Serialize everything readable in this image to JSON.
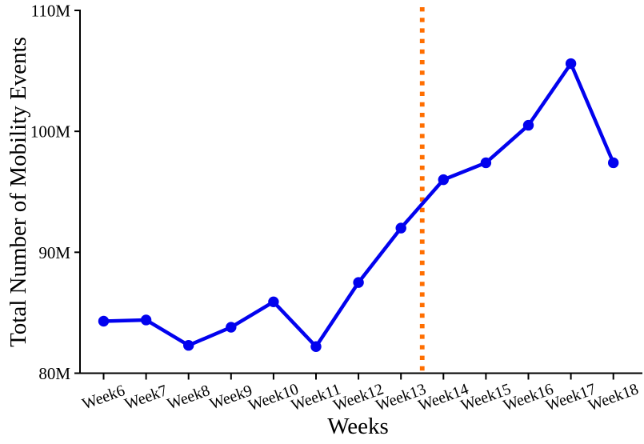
{
  "chart_data": {
    "type": "line",
    "title": "",
    "xlabel": "Weeks",
    "ylabel": "Total Number of Mobility Events",
    "categories": [
      "Week6",
      "Week7",
      "Week8",
      "Week9",
      "Week10",
      "Week11",
      "Week12",
      "Week13",
      "Week14",
      "Week15",
      "Week16",
      "Week17",
      "Week18"
    ],
    "series": [
      {
        "name": "Total number of mobility events",
        "unit": "M",
        "values": [
          84.3,
          84.4,
          82.3,
          83.8,
          85.9,
          82.2,
          87.5,
          92.0,
          96.0,
          97.4,
          100.5,
          105.6,
          97.4
        ],
        "color": "#0202EE",
        "marker": "circle"
      }
    ],
    "ylim": [
      80,
      110
    ],
    "ytick_values": [
      80,
      90,
      100,
      110
    ],
    "ytick_labels": [
      "80M",
      "90M",
      "100M",
      "110M"
    ],
    "grid": false,
    "legend": "none",
    "vline": {
      "position_week": 13.5,
      "between": [
        "Week13",
        "Week14"
      ],
      "style": "dotted",
      "color": "#FF6E00"
    },
    "colors": {
      "line": "#0202EE",
      "vline": "#FF6E00",
      "axis": "#000000",
      "background": "#FFFFFF"
    }
  }
}
